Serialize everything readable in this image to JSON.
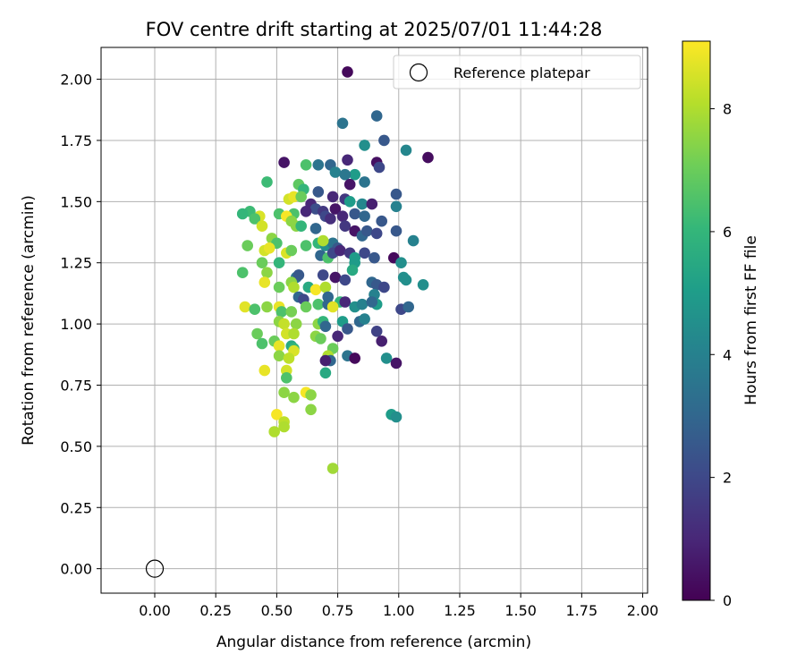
{
  "chart_data": {
    "type": "scatter",
    "title": "FOV centre drift starting at 2025/07/01 11:44:28",
    "xlabel": "Angular distance from reference (arcmin)",
    "ylabel": "Rotation from reference (arcmin)",
    "xlim": [
      -0.22,
      2.02
    ],
    "ylim": [
      -0.1,
      2.13
    ],
    "x_ticks": [
      "0.00",
      "0.25",
      "0.50",
      "0.75",
      "1.00",
      "1.25",
      "1.50",
      "1.75",
      "2.00"
    ],
    "y_ticks": [
      "0.00",
      "0.25",
      "0.50",
      "0.75",
      "1.00",
      "1.25",
      "1.50",
      "1.75",
      "2.00"
    ],
    "grid": true,
    "legend": {
      "position": "top-right",
      "entries": [
        {
          "label": "Reference platepar",
          "marker": "open-circle"
        }
      ]
    },
    "reference": {
      "x": 0.0,
      "y": 0.0
    },
    "colorbar": {
      "label": "Hours from first FF file",
      "colormap": "viridis",
      "min": 0,
      "max": 9.1,
      "ticks": [
        "0",
        "2",
        "4",
        "6",
        "8"
      ]
    },
    "colormap_stops": [
      "#440154",
      "#482878",
      "#3e4989",
      "#31688e",
      "#26828e",
      "#1f9e89",
      "#35b779",
      "#6ece58",
      "#b5de2b",
      "#fde725"
    ],
    "points_columns": [
      "x",
      "y",
      "hours"
    ],
    "points": [
      [
        0.79,
        2.03,
        0.2
      ],
      [
        0.91,
        1.85,
        3.0
      ],
      [
        0.77,
        1.82,
        3.5
      ],
      [
        0.94,
        1.75,
        2.5
      ],
      [
        0.86,
        1.73,
        4.5
      ],
      [
        1.03,
        1.71,
        4.2
      ],
      [
        1.12,
        1.68,
        0.3
      ],
      [
        0.53,
        1.66,
        0.5
      ],
      [
        0.62,
        1.65,
        6.5
      ],
      [
        0.67,
        1.65,
        3.5
      ],
      [
        0.72,
        1.65,
        3.0
      ],
      [
        0.79,
        1.67,
        1.0
      ],
      [
        0.91,
        1.66,
        0.4
      ],
      [
        0.92,
        1.64,
        2.0
      ],
      [
        0.74,
        1.62,
        4.0
      ],
      [
        0.82,
        1.61,
        5.0
      ],
      [
        0.78,
        1.61,
        3.6
      ],
      [
        0.8,
        1.57,
        0.5
      ],
      [
        0.86,
        1.58,
        3.5
      ],
      [
        0.46,
        1.58,
        6.2
      ],
      [
        0.59,
        1.57,
        6.8
      ],
      [
        0.61,
        1.55,
        6.0
      ],
      [
        0.67,
        1.54,
        2.5
      ],
      [
        0.55,
        1.51,
        8.5
      ],
      [
        0.57,
        1.52,
        8.8
      ],
      [
        0.6,
        1.52,
        7.0
      ],
      [
        0.73,
        1.52,
        1.0
      ],
      [
        0.78,
        1.51,
        1.5
      ],
      [
        0.8,
        1.5,
        5.0
      ],
      [
        0.85,
        1.49,
        4.2
      ],
      [
        0.89,
        1.49,
        0.8
      ],
      [
        0.99,
        1.53,
        2.5
      ],
      [
        0.99,
        1.48,
        4.0
      ],
      [
        0.64,
        1.49,
        1.0
      ],
      [
        0.66,
        1.47,
        2.2
      ],
      [
        0.74,
        1.47,
        0.5
      ],
      [
        0.69,
        1.46,
        1.5
      ],
      [
        0.62,
        1.46,
        1.0
      ],
      [
        0.57,
        1.45,
        6.5
      ],
      [
        0.51,
        1.45,
        6.5
      ],
      [
        0.54,
        1.44,
        9.0
      ],
      [
        0.43,
        1.44,
        8.6
      ],
      [
        0.39,
        1.46,
        6.2
      ],
      [
        0.36,
        1.45,
        6.0
      ],
      [
        0.41,
        1.43,
        6.5
      ],
      [
        0.56,
        1.42,
        7.5
      ],
      [
        0.58,
        1.4,
        7.5
      ],
      [
        0.6,
        1.4,
        6.0
      ],
      [
        0.44,
        1.4,
        8.5
      ],
      [
        0.7,
        1.44,
        2.0
      ],
      [
        0.72,
        1.43,
        1.2
      ],
      [
        0.77,
        1.44,
        1.0
      ],
      [
        0.82,
        1.45,
        2.5
      ],
      [
        0.86,
        1.44,
        3.0
      ],
      [
        0.93,
        1.42,
        2.5
      ],
      [
        0.78,
        1.4,
        1.5
      ],
      [
        0.66,
        1.39,
        3.0
      ],
      [
        0.82,
        1.38,
        0.5
      ],
      [
        0.85,
        1.36,
        3.0
      ],
      [
        0.87,
        1.38,
        2.5
      ],
      [
        0.91,
        1.37,
        2.0
      ],
      [
        0.99,
        1.38,
        2.5
      ],
      [
        1.06,
        1.34,
        4.0
      ],
      [
        0.48,
        1.35,
        7.5
      ],
      [
        0.5,
        1.33,
        6.5
      ],
      [
        0.62,
        1.32,
        6.5
      ],
      [
        0.67,
        1.33,
        6.0
      ],
      [
        0.7,
        1.32,
        4.5
      ],
      [
        0.73,
        1.33,
        3.5
      ],
      [
        0.75,
        1.31,
        2.5
      ],
      [
        0.69,
        1.34,
        8.0
      ],
      [
        0.38,
        1.32,
        7.0
      ],
      [
        0.45,
        1.3,
        8.5
      ],
      [
        0.47,
        1.31,
        8.8
      ],
      [
        0.54,
        1.29,
        8.6
      ],
      [
        0.56,
        1.3,
        7.0
      ],
      [
        0.68,
        1.28,
        3.0
      ],
      [
        0.71,
        1.27,
        6.5
      ],
      [
        0.73,
        1.29,
        2.0
      ],
      [
        0.76,
        1.3,
        1.0
      ],
      [
        0.8,
        1.29,
        1.5
      ],
      [
        0.82,
        1.27,
        5.0
      ],
      [
        0.82,
        1.25,
        5.0
      ],
      [
        0.86,
        1.29,
        2.0
      ],
      [
        0.9,
        1.27,
        2.5
      ],
      [
        0.98,
        1.27,
        0.2
      ],
      [
        1.01,
        1.25,
        4.5
      ],
      [
        0.44,
        1.25,
        7.0
      ],
      [
        0.51,
        1.25,
        6.0
      ],
      [
        0.36,
        1.21,
        6.5
      ],
      [
        0.46,
        1.21,
        7.5
      ],
      [
        0.58,
        1.19,
        3.5
      ],
      [
        0.59,
        1.2,
        2.5
      ],
      [
        0.69,
        1.2,
        2.0
      ],
      [
        0.74,
        1.19,
        0.5
      ],
      [
        0.78,
        1.18,
        2.0
      ],
      [
        0.81,
        1.22,
        5.5
      ],
      [
        0.89,
        1.17,
        3.0
      ],
      [
        0.91,
        1.16,
        2.5
      ],
      [
        0.94,
        1.15,
        2.0
      ],
      [
        1.02,
        1.19,
        4.5
      ],
      [
        1.03,
        1.18,
        4.5
      ],
      [
        1.1,
        1.16,
        4.5
      ],
      [
        0.45,
        1.17,
        8.8
      ],
      [
        0.51,
        1.15,
        7.0
      ],
      [
        0.56,
        1.17,
        7.5
      ],
      [
        0.57,
        1.15,
        8.0
      ],
      [
        0.63,
        1.15,
        5.5
      ],
      [
        0.66,
        1.14,
        9.0
      ],
      [
        0.7,
        1.15,
        8.0
      ],
      [
        0.71,
        1.11,
        3.0
      ],
      [
        0.76,
        1.09,
        6.0
      ],
      [
        0.78,
        1.09,
        1.0
      ],
      [
        0.82,
        1.07,
        4.5
      ],
      [
        0.85,
        1.08,
        4.0
      ],
      [
        0.9,
        1.12,
        4.0
      ],
      [
        0.91,
        1.08,
        5.0
      ],
      [
        0.89,
        1.09,
        3.0
      ],
      [
        0.59,
        1.11,
        3.0
      ],
      [
        0.61,
        1.1,
        2.0
      ],
      [
        0.37,
        1.07,
        8.7
      ],
      [
        0.41,
        1.06,
        6.5
      ],
      [
        0.46,
        1.07,
        7.5
      ],
      [
        0.51,
        1.07,
        8.8
      ],
      [
        0.52,
        1.05,
        6.5
      ],
      [
        0.56,
        1.05,
        7.2
      ],
      [
        0.62,
        1.07,
        7.0
      ],
      [
        0.67,
        1.08,
        6.5
      ],
      [
        0.71,
        1.08,
        3.0
      ],
      [
        0.73,
        1.07,
        8.7
      ],
      [
        1.01,
        1.06,
        2.0
      ],
      [
        1.04,
        1.07,
        3.0
      ],
      [
        0.51,
        1.01,
        7.5
      ],
      [
        0.53,
        1.0,
        8.3
      ],
      [
        0.58,
        1.0,
        7.5
      ],
      [
        0.67,
        1.0,
        7.5
      ],
      [
        0.69,
        1.01,
        6.0
      ],
      [
        0.7,
        0.99,
        3.0
      ],
      [
        0.77,
        1.01,
        5.0
      ],
      [
        0.84,
        1.01,
        3.0
      ],
      [
        0.86,
        1.02,
        4.0
      ],
      [
        0.79,
        0.98,
        2.5
      ],
      [
        0.91,
        0.97,
        1.8
      ],
      [
        0.93,
        0.93,
        0.8
      ],
      [
        0.42,
        0.96,
        7.0
      ],
      [
        0.54,
        0.96,
        8.5
      ],
      [
        0.57,
        0.96,
        8.0
      ],
      [
        0.66,
        0.95,
        7.5
      ],
      [
        0.68,
        0.94,
        7.0
      ],
      [
        0.75,
        0.95,
        1.0
      ],
      [
        0.49,
        0.93,
        7.0
      ],
      [
        0.44,
        0.92,
        6.5
      ],
      [
        0.51,
        0.91,
        8.8
      ],
      [
        0.56,
        0.91,
        5.5
      ],
      [
        0.57,
        0.9,
        6.0
      ],
      [
        0.57,
        0.89,
        8.6
      ],
      [
        0.73,
        0.9,
        7.0
      ],
      [
        0.51,
        0.87,
        7.5
      ],
      [
        0.55,
        0.86,
        8.2
      ],
      [
        0.71,
        0.87,
        8.0
      ],
      [
        0.72,
        0.85,
        3.0
      ],
      [
        0.7,
        0.85,
        0.8
      ],
      [
        0.79,
        0.87,
        3.5
      ],
      [
        0.82,
        0.86,
        0.2
      ],
      [
        0.95,
        0.86,
        4.5
      ],
      [
        0.99,
        0.84,
        0.5
      ],
      [
        0.45,
        0.81,
        8.8
      ],
      [
        0.54,
        0.81,
        8.5
      ],
      [
        0.7,
        0.8,
        5.5
      ],
      [
        0.54,
        0.78,
        6.5
      ],
      [
        0.53,
        0.72,
        7.5
      ],
      [
        0.57,
        0.7,
        7.5
      ],
      [
        0.62,
        0.72,
        9.0
      ],
      [
        0.64,
        0.71,
        7.5
      ],
      [
        0.97,
        0.63,
        5.0
      ],
      [
        0.99,
        0.62,
        4.5
      ],
      [
        0.5,
        0.63,
        9.0
      ],
      [
        0.53,
        0.6,
        8.2
      ],
      [
        0.53,
        0.58,
        8.0
      ],
      [
        0.49,
        0.56,
        8.0
      ],
      [
        0.64,
        0.65,
        7.5
      ],
      [
        0.73,
        0.41,
        7.8
      ]
    ]
  }
}
